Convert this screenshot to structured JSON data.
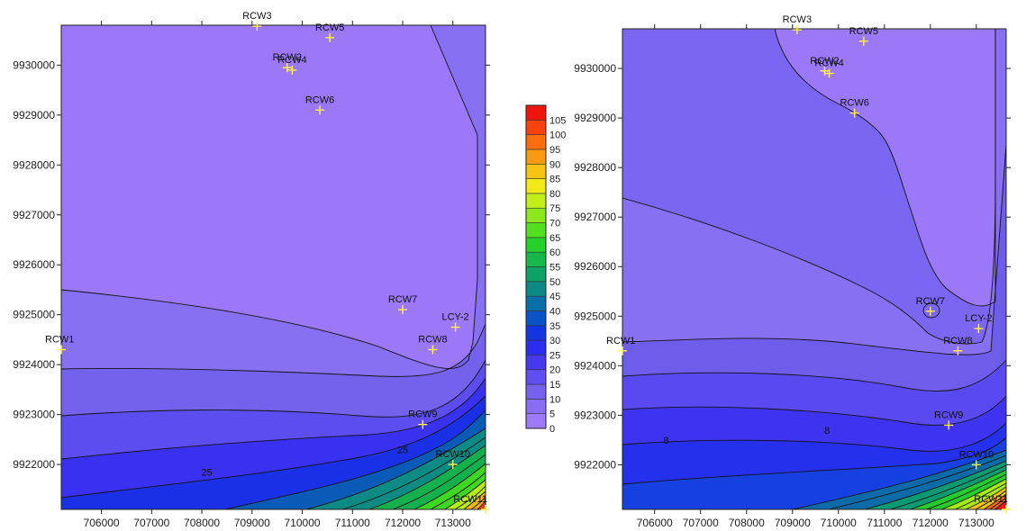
{
  "chart_data": [
    {
      "type": "contour",
      "x_ticks": [
        706000,
        707000,
        708000,
        709000,
        710000,
        711000,
        712000,
        713000
      ],
      "y_ticks": [
        9922000,
        9923000,
        9924000,
        9925000,
        9926000,
        9927000,
        9928000,
        9929000,
        9930000
      ],
      "xlim": [
        705200,
        713650
      ],
      "ylim": [
        9921100,
        9930800
      ],
      "contour_labels": [
        {
          "text": "25",
          "x": 708100,
          "y": 9921850
        },
        {
          "text": "25",
          "x": 712000,
          "y": 9922300
        }
      ],
      "wells": [
        {
          "name": "RCW1",
          "x": 705200,
          "y": 9924300
        },
        {
          "name": "RCW2",
          "x": 709700,
          "y": 9929950
        },
        {
          "name": "RCW3",
          "x": 709100,
          "y": 9930780
        },
        {
          "name": "RCW4",
          "x": 709800,
          "y": 9929900
        },
        {
          "name": "RCW5",
          "x": 710550,
          "y": 9930550
        },
        {
          "name": "RCW6",
          "x": 710350,
          "y": 9929100
        },
        {
          "name": "RCW7",
          "x": 712000,
          "y": 9925100
        },
        {
          "name": "LCY-2",
          "x": 713050,
          "y": 9924750
        },
        {
          "name": "RCW8",
          "x": 712600,
          "y": 9924300
        },
        {
          "name": "RCW9",
          "x": 712400,
          "y": 9922800
        },
        {
          "name": "RCW10",
          "x": 713000,
          "y": 9922000
        },
        {
          "name": "RCW11",
          "x": 713650,
          "y": 9921100
        }
      ]
    },
    {
      "type": "contour",
      "x_ticks": [
        706000,
        707000,
        708000,
        709000,
        710000,
        711000,
        712000,
        713000
      ],
      "y_ticks": [
        9922000,
        9923000,
        9924000,
        9925000,
        9926000,
        9927000,
        9928000,
        9929000,
        9930000
      ],
      "xlim": [
        705300,
        713650
      ],
      "ylim": [
        9921100,
        9930800
      ],
      "contour_labels": [
        {
          "text": "8",
          "x": 706250,
          "y": 9922500
        },
        {
          "text": "8",
          "x": 709750,
          "y": 9922700
        }
      ],
      "wells": [
        {
          "name": "RCW1",
          "x": 705300,
          "y": 9924300
        },
        {
          "name": "RCW2",
          "x": 709700,
          "y": 9929950
        },
        {
          "name": "RCW3",
          "x": 709100,
          "y": 9930780
        },
        {
          "name": "RCW4",
          "x": 709800,
          "y": 9929900
        },
        {
          "name": "RCW5",
          "x": 710550,
          "y": 9930550
        },
        {
          "name": "RCW6",
          "x": 710350,
          "y": 9929100
        },
        {
          "name": "RCW7",
          "x": 712000,
          "y": 9925100
        },
        {
          "name": "LCY-2",
          "x": 713050,
          "y": 9924750
        },
        {
          "name": "RCW8",
          "x": 712600,
          "y": 9924300
        },
        {
          "name": "RCW9",
          "x": 712400,
          "y": 9922800
        },
        {
          "name": "RCW10",
          "x": 713000,
          "y": 9922000
        },
        {
          "name": "RCW11",
          "x": 713650,
          "y": 9921100
        }
      ]
    }
  ],
  "legend": {
    "levels": [
      0,
      5,
      10,
      15,
      20,
      25,
      30,
      35,
      40,
      45,
      50,
      55,
      60,
      65,
      70,
      75,
      80,
      85,
      90,
      95,
      100,
      105
    ],
    "colors": [
      "#9c7af8",
      "#8a6df4",
      "#7660ee",
      "#5f4ef0",
      "#4638ee",
      "#2a2cf0",
      "#1436e0",
      "#0a52c8",
      "#0a6fa6",
      "#0b8a86",
      "#0fa266",
      "#16b84a",
      "#26d02a",
      "#52e020",
      "#8ae81c",
      "#c2ee1a",
      "#f2ea16",
      "#f8c414",
      "#fa9a12",
      "#fa6e10",
      "#f8420e",
      "#f0140c"
    ]
  }
}
